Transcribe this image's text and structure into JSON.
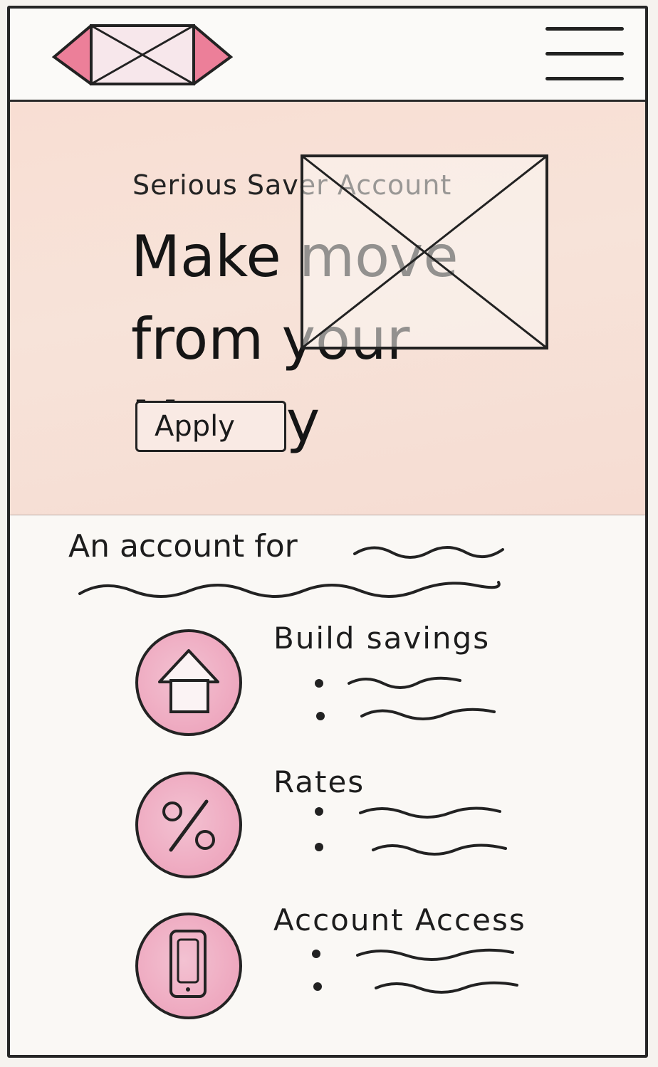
{
  "header": {
    "logo_icon": "logo-placeholder-icon",
    "menu_icon": "hamburger-menu-icon"
  },
  "hero": {
    "eyebrow": "Serious Saver Account",
    "headline_line1": "Make move",
    "headline_line2": "from your Money",
    "image_icon": "image-placeholder-icon",
    "apply_label": "Apply"
  },
  "accounts_section": {
    "title": "An account for",
    "features": [
      {
        "label": "Build savings",
        "icon": "house-icon"
      },
      {
        "label": "Rates",
        "icon": "percent-icon"
      },
      {
        "label": "Account Access",
        "icon": "mobile-phone-icon"
      }
    ]
  },
  "colors": {
    "accent_pink": "#ee7f9c",
    "hero_bg": "#f7e0d6",
    "ink": "#222222"
  }
}
